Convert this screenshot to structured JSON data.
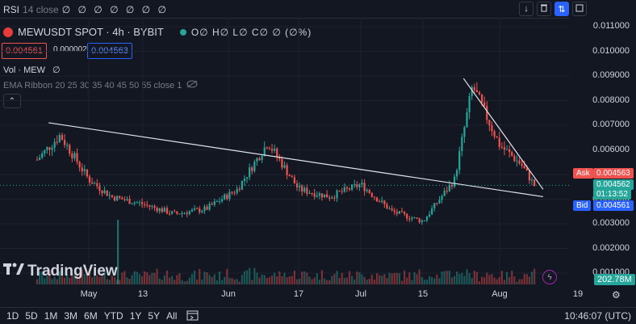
{
  "top": {
    "rsi_label": "RSI",
    "rsi_params": "14 close",
    "rsi_values": "∅ ∅ ∅ ∅ ∅ ∅ ∅",
    "buttons": {
      "down": "↓",
      "trash": "🗑",
      "updown": "⇅",
      "expand": "⤢"
    }
  },
  "legend": {
    "symbol": "MEWUSDT SPOT · 4h · BYBIT",
    "ohlc": "O∅ H∅ L∅ C∅ ∅ (∅%)",
    "sell_price": "0.004561",
    "spread": "0.000002",
    "buy_price": "0.004563",
    "vol": "Vol · MEW",
    "vol_value": "∅",
    "ema": "EMA Ribbon 20 25 30 35 40 45 50 55 close 1",
    "collapse": "⌃"
  },
  "price_axis": {
    "ticks": [
      "0.011000",
      "0.010000",
      "0.009000",
      "0.008000",
      "0.007000",
      "0.006000",
      "0.005000",
      "0.004000",
      "0.003000",
      "0.002000",
      "0.001000"
    ],
    "ask_label": "Ask",
    "ask_value": "0.004563",
    "last_value": "0.004562",
    "countdown": "01:13:52",
    "bid_label": "Bid",
    "bid_value": "0.004561",
    "volume_tag": "202.78M"
  },
  "time_axis": [
    "May",
    "13",
    "Jun",
    "17",
    "Jul",
    "15",
    "Aug",
    "19"
  ],
  "bottom": {
    "ranges": [
      "1D",
      "5D",
      "1M",
      "3M",
      "6M",
      "YTD",
      "1Y",
      "5Y",
      "All"
    ],
    "clock": "10:46:07 (UTC)"
  },
  "branding": {
    "name": "TradingView"
  },
  "colors": {
    "up": "#26a69a",
    "down": "#ef5350",
    "background": "#131722",
    "accent": "#2962ff"
  },
  "chart_data": {
    "type": "candlestick",
    "interval": "4h",
    "yscale": "linear",
    "ylim": [
      0.0005,
      0.0115
    ],
    "x": [
      "Apr 22",
      "Apr 26",
      "May 1",
      "May 6",
      "May 13",
      "May 20",
      "May 27",
      "Jun 3",
      "Jun 10",
      "Jun 17",
      "Jun 24",
      "Jul 1",
      "Jul 8",
      "Jul 15",
      "Jul 22",
      "Jul 26",
      "Aug 1",
      "Aug 6",
      "Aug 9"
    ],
    "close": [
      0.0056,
      0.0066,
      0.0048,
      0.0041,
      0.0038,
      0.0034,
      0.0036,
      0.0044,
      0.0063,
      0.0044,
      0.0041,
      0.0046,
      0.0035,
      0.0031,
      0.0048,
      0.0086,
      0.0062,
      0.0054,
      0.00456
    ],
    "trendlines": [
      {
        "from": [
          "Apr 24",
          0.0071
        ],
        "to": [
          "Aug 11",
          0.0041
        ]
      },
      {
        "from": [
          "Jul 24",
          0.0089
        ],
        "to": [
          "Aug 11",
          0.0044
        ]
      }
    ],
    "last_price": 0.004562
  }
}
